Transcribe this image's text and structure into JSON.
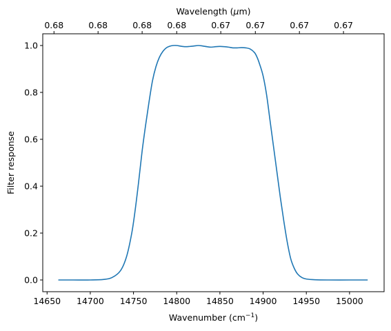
{
  "chart_data": {
    "type": "line",
    "xlabel": "Wavenumber (cm",
    "xlabel_superscript": "−1",
    "xlabel_suffix": ")",
    "ylabel": "Filter response",
    "top_xlabel": "Wavelength (",
    "top_xlabel_mu": "μ",
    "top_xlabel_suffix": "m)",
    "xlim": [
      14645,
      15040
    ],
    "ylim": [
      -0.05,
      1.05
    ],
    "x_ticks": [
      14650,
      14700,
      14750,
      14800,
      14850,
      14900,
      14950,
      15000
    ],
    "x_tick_labels": [
      "14650",
      "14700",
      "14750",
      "14800",
      "14850",
      "14900",
      "14950",
      "15000"
    ],
    "y_ticks": [
      0.0,
      0.2,
      0.4,
      0.6,
      0.8,
      1.0
    ],
    "y_tick_labels": [
      "0.0",
      "0.2",
      "0.4",
      "0.6",
      "0.8",
      "1.0"
    ],
    "top_ticks_x": [
      14658,
      14709,
      14760,
      14800,
      14851,
      14891,
      14942,
      14993
    ],
    "top_tick_labels": [
      "0.68",
      "0.68",
      "0.68",
      "0.68",
      "0.67",
      "0.67",
      "0.67",
      "0.67"
    ],
    "line_color": "#1f77b4",
    "series": [
      {
        "x": [
          14663,
          14680,
          14700,
          14715,
          14725,
          14735,
          14742,
          14748,
          14752,
          14756,
          14760,
          14764,
          14768,
          14772,
          14776,
          14780,
          14784,
          14788,
          14792,
          14796,
          14800,
          14805,
          14810,
          14815,
          14820,
          14825,
          14830,
          14835,
          14840,
          14845,
          14850,
          14855,
          14860,
          14865,
          14870,
          14875,
          14880,
          14885,
          14890,
          14893,
          14896,
          14900,
          14904,
          14908,
          14912,
          14916,
          14920,
          14924,
          14928,
          14932,
          14936,
          14940,
          14945,
          14950,
          14960,
          14975,
          15000,
          15021
        ],
        "y": [
          0.0,
          0.0,
          0.0,
          0.002,
          0.01,
          0.04,
          0.1,
          0.2,
          0.3,
          0.42,
          0.55,
          0.66,
          0.76,
          0.85,
          0.91,
          0.95,
          0.975,
          0.99,
          0.997,
          1.0,
          1.0,
          0.997,
          0.995,
          0.996,
          0.998,
          1.0,
          0.998,
          0.995,
          0.993,
          0.995,
          0.996,
          0.995,
          0.993,
          0.99,
          0.99,
          0.991,
          0.99,
          0.985,
          0.97,
          0.95,
          0.92,
          0.87,
          0.79,
          0.68,
          0.57,
          0.46,
          0.35,
          0.25,
          0.16,
          0.09,
          0.05,
          0.025,
          0.01,
          0.004,
          0.001,
          0.0,
          0.0,
          0.0
        ]
      }
    ]
  }
}
